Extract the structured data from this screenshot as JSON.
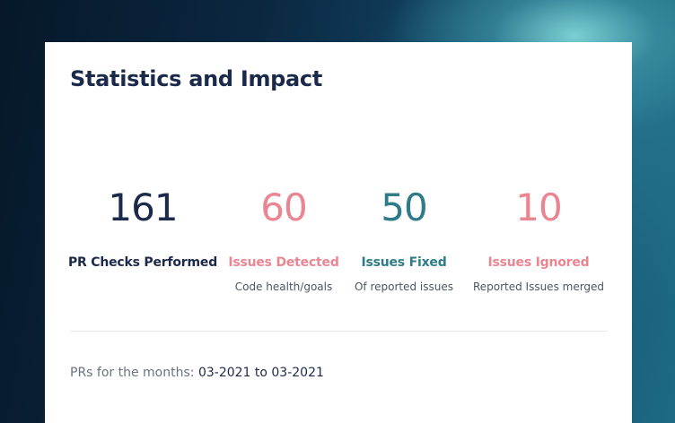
{
  "card": {
    "title": "Statistics and Impact"
  },
  "stats": [
    {
      "value": "161",
      "label": "PR Checks Performed",
      "sub": ""
    },
    {
      "value": "60",
      "label": "Issues Detected",
      "sub": "Code health/goals"
    },
    {
      "value": "50",
      "label": "Issues Fixed",
      "sub": "Of reported issues"
    },
    {
      "value": "10",
      "label": "Issues Ignored",
      "sub": "Reported Issues merged"
    }
  ],
  "period": {
    "prefix": "PRs for the months:",
    "range": "03-2021 to 03-2021"
  },
  "colors": {
    "dark": "#1b2a4a",
    "pink": "#ea8592",
    "teal": "#2f7b88",
    "muted": "#6b7280"
  }
}
